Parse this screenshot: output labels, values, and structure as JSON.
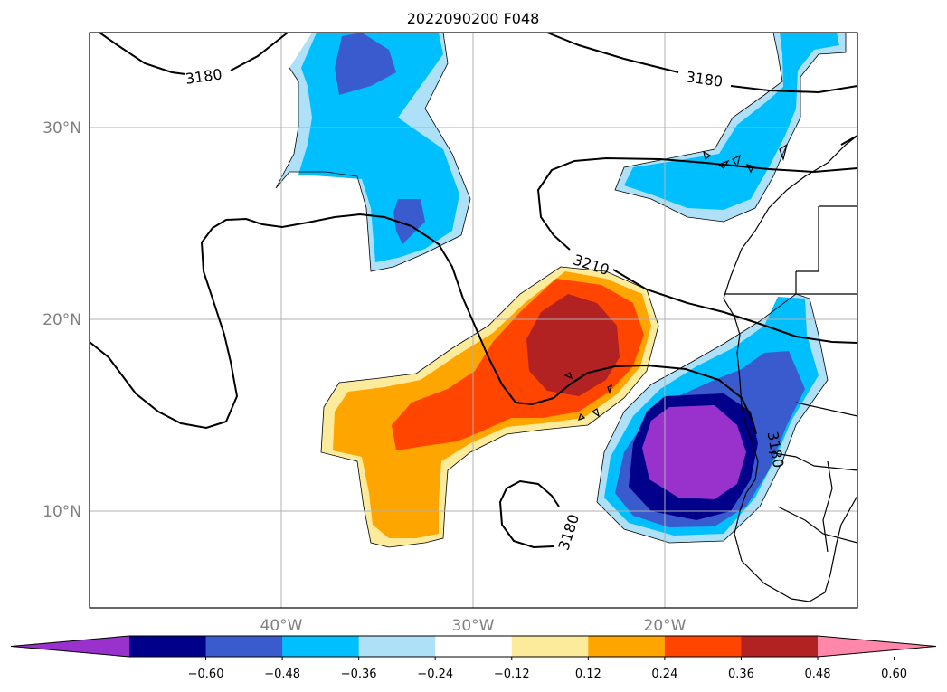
{
  "title": "2022090200 F048",
  "axes": {
    "lat_labels": [
      "30°N",
      "20°N",
      "10°N"
    ],
    "lon_labels": [
      "40°W",
      "30°W",
      "20°W"
    ]
  },
  "contour_labels": [
    "3180",
    "3180",
    "3210",
    "3180",
    "3180"
  ],
  "colorbar": {
    "ticks": [
      "−0.60",
      "−0.48",
      "−0.36",
      "−0.24",
      "−0.12",
      "0.12",
      "0.24",
      "0.36",
      "0.48",
      "0.60"
    ],
    "colors": [
      "#9932cc",
      "#00008b",
      "#3a5bcd",
      "#00bfff",
      "#aee1f8",
      "#ffffff",
      "#fdeb9c",
      "#ffa500",
      "#ff4500",
      "#b22222",
      "#ff88aa"
    ],
    "extend": "both"
  },
  "palette": {
    "purple": "#9932cc",
    "navy": "#00008b",
    "royal": "#3a5bcd",
    "sky": "#00bfff",
    "pale_blue": "#aee1f8",
    "pale_yellow": "#fdeb9c",
    "orange": "#ffa500",
    "red_orange": "#ff4500",
    "firebrick": "#b22222",
    "pink": "#ff88aa"
  },
  "grid": true
}
